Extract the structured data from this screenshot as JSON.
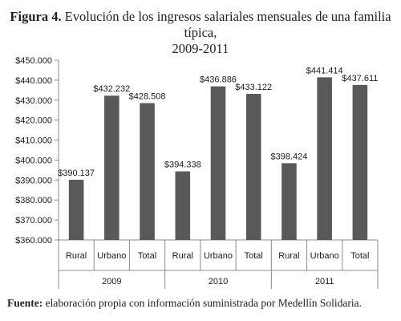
{
  "figure": {
    "label": "Figura 4.",
    "title_line1": "Evolución de los ingresos salariales mensuales de una familia típica,",
    "title_line2": "2009-2011"
  },
  "source": {
    "label": "Fuente:",
    "text": "elaboración propia con información suministrada por Medellín Solidaria."
  },
  "colors": {
    "bar": "#595959",
    "axis": "#8c8c8c",
    "text": "#1a1a1a"
  },
  "chart_data": {
    "type": "bar",
    "ylim": [
      360000,
      450000
    ],
    "yticks": [
      360000,
      370000,
      380000,
      390000,
      400000,
      410000,
      420000,
      430000,
      440000,
      450000
    ],
    "ytick_labels": [
      "$360.000",
      "$370.000",
      "$380.000",
      "$390.000",
      "$400.000",
      "$410.000",
      "$420.000",
      "$430.000",
      "$440.000",
      "$450.000"
    ],
    "grid": false,
    "groups": [
      {
        "year": "2009",
        "categories": [
          "Rural",
          "Urbano",
          "Total"
        ],
        "values": [
          390137,
          432232,
          428508
        ],
        "labels": [
          "$390.137",
          "$432.232",
          "$428.508"
        ]
      },
      {
        "year": "2010",
        "categories": [
          "Rural",
          "Urbano",
          "Total"
        ],
        "values": [
          394338,
          436886,
          433122
        ],
        "labels": [
          "$394.338",
          "$436.886",
          "$433.122"
        ]
      },
      {
        "year": "2011",
        "categories": [
          "Rural",
          "Urbano",
          "Total"
        ],
        "values": [
          398424,
          441414,
          437611
        ],
        "labels": [
          "$398.424",
          "$441.414",
          "$437.611"
        ]
      }
    ]
  }
}
